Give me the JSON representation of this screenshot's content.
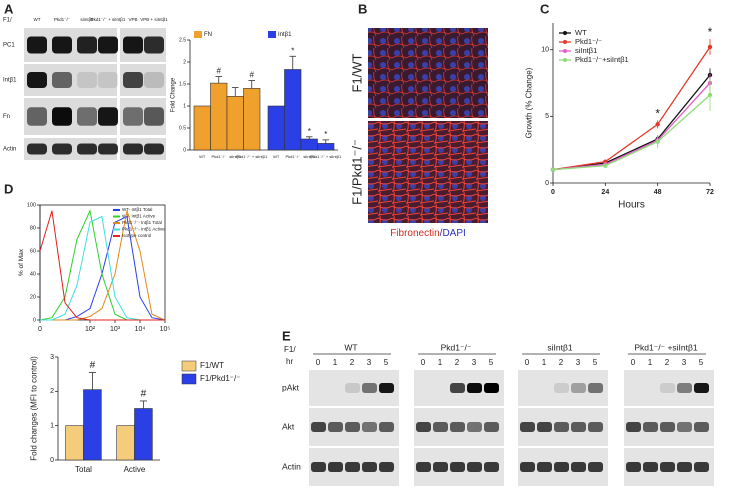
{
  "panel_labels": [
    "A",
    "B",
    "C",
    "D",
    "E"
  ],
  "blot_a": {
    "prefix": "F1/",
    "lanes": [
      "WT",
      "Pkd1⁻/⁻",
      "siIntβ1",
      "Pkd1⁻/⁻ + siIntβ1",
      "VPB",
      "VPB + siIntβ1"
    ],
    "rows": [
      "PC1",
      "Intβ1",
      "Fn",
      "Actin"
    ]
  },
  "images_b": {
    "rows": [
      "F1/WT",
      "F1/Pkd1⁻/⁻"
    ],
    "stain": "Fibronectin",
    "counterstain": "/DAPI"
  },
  "blot_e": {
    "prefix": "F1/",
    "hr": "hr",
    "groups": [
      "WT",
      "Pkd1⁻/⁻",
      "siIntβ1",
      "Pkd1⁻/⁻ +siIntβ1"
    ],
    "hours": [
      "0",
      "1",
      "2",
      "3",
      "5"
    ],
    "rows": [
      "pAkt",
      "Akt",
      "Actin"
    ]
  },
  "chart_data": [
    {
      "type": "bar",
      "y_label": "Fold Change",
      "categories": [
        "WT",
        "Pkd1⁻/⁻",
        "siIntβ1",
        "Pkd1⁻/⁻ + siIntβ1"
      ],
      "series": [
        {
          "name": "FN",
          "color": "#f0a02c",
          "values": [
            1,
            1.52,
            1.22,
            1.4
          ],
          "errors": [
            0,
            0.15,
            0.2,
            0.18
          ],
          "markers": [
            null,
            "#",
            null,
            "#"
          ]
        },
        {
          "name": "Intβ1",
          "color": "#2a3fe6",
          "values": [
            1,
            1.83,
            0.25,
            0.15
          ],
          "errors": [
            0,
            0.3,
            0.05,
            0.08
          ],
          "markers": [
            null,
            "*",
            "*",
            "*"
          ]
        }
      ],
      "ylim": [
        0,
        2.5
      ],
      "yticks": [
        0,
        0.5,
        1,
        1.5,
        2,
        2.5
      ]
    },
    {
      "type": "line",
      "x_label": "Hours",
      "y_label": "Growth (% Change)",
      "x": [
        0,
        24,
        48,
        72
      ],
      "series": [
        {
          "name": "WT",
          "color": "#111111",
          "values": [
            1,
            1.5,
            3.3,
            8.1
          ],
          "errors": [
            0.1,
            0.1,
            0.3,
            0.5
          ]
        },
        {
          "name": "Pkd1⁻/⁻",
          "color": "#e03a2a",
          "values": [
            1,
            1.6,
            4.4,
            10.2
          ],
          "errors": [
            0.1,
            0.1,
            0.3,
            0.6
          ],
          "markers": [
            null,
            null,
            "*",
            "*"
          ]
        },
        {
          "name": "siIntβ1",
          "color": "#e060c8",
          "values": [
            1,
            1.4,
            3.2,
            7.5
          ],
          "errors": [
            0.1,
            0.1,
            0.4,
            0.7
          ]
        },
        {
          "name": "Pkd1⁻/⁻+siIntβ1",
          "color": "#8fdc78",
          "values": [
            1,
            1.3,
            3.1,
            6.6
          ],
          "errors": [
            0.1,
            0.1,
            0.5,
            1.2
          ]
        }
      ],
      "xlim": [
        0,
        72
      ],
      "xticks": [
        0,
        24,
        48,
        72
      ],
      "ylim": [
        0,
        12
      ],
      "yticks": [
        0,
        5,
        10
      ]
    },
    {
      "type": "histogram-lines",
      "y_label": "% of Max",
      "log_x": true,
      "x": [
        1,
        3,
        10,
        30,
        100,
        300,
        1000,
        3000,
        10000,
        30000,
        100000
      ],
      "series": [
        {
          "name": "WT- Intβ1 Total",
          "color": "#2a3fe6",
          "values": [
            0,
            0,
            0,
            3,
            10,
            40,
            85,
            90,
            20,
            2,
            0
          ]
        },
        {
          "name": "WT- Intβ1 Active",
          "color": "#2fd02f",
          "values": [
            0,
            2,
            20,
            70,
            95,
            40,
            5,
            0,
            0,
            0,
            0
          ]
        },
        {
          "name": "Pkd1⁻/⁻- Intβ1 Total",
          "color": "#e08a1a",
          "values": [
            0,
            0,
            0,
            0,
            3,
            10,
            40,
            95,
            60,
            5,
            0
          ]
        },
        {
          "name": "Pkd1⁻/⁻- Intβ1 Active",
          "color": "#40e0e0",
          "values": [
            0,
            0,
            5,
            30,
            85,
            90,
            20,
            2,
            0,
            0,
            0
          ]
        },
        {
          "name": "Isotype control",
          "color": "#e02020",
          "values": [
            60,
            95,
            15,
            2,
            0,
            0,
            0,
            0,
            0,
            0,
            0
          ]
        }
      ],
      "xlim": [
        1,
        100000
      ],
      "xticks": [
        {
          "value": 1,
          "label": "0"
        },
        {
          "value": 100,
          "label": "10²"
        },
        {
          "value": 1000,
          "label": "10³"
        },
        {
          "value": 10000,
          "label": "10⁴"
        },
        {
          "value": 100000,
          "label": "10⁵"
        }
      ],
      "ylim": [
        0,
        100
      ],
      "yticks": [
        0,
        20,
        40,
        60,
        80,
        100
      ]
    },
    {
      "type": "bar",
      "y_label": "Fold changes (MFI to control)",
      "categories": [
        "Total",
        "Active"
      ],
      "series": [
        {
          "name": "F1/WT",
          "color": "#f5cd7a",
          "values": [
            1,
            1
          ],
          "errors": [
            0,
            0
          ]
        },
        {
          "name": "F1/Pkd1⁻/⁻",
          "color": "#2a3fe6",
          "values": [
            2.05,
            1.5
          ],
          "errors": [
            0.5,
            0.22
          ],
          "markers": [
            "#",
            "#"
          ]
        }
      ],
      "ylim": [
        0,
        3
      ],
      "yticks": [
        0,
        1,
        2,
        3
      ]
    }
  ]
}
